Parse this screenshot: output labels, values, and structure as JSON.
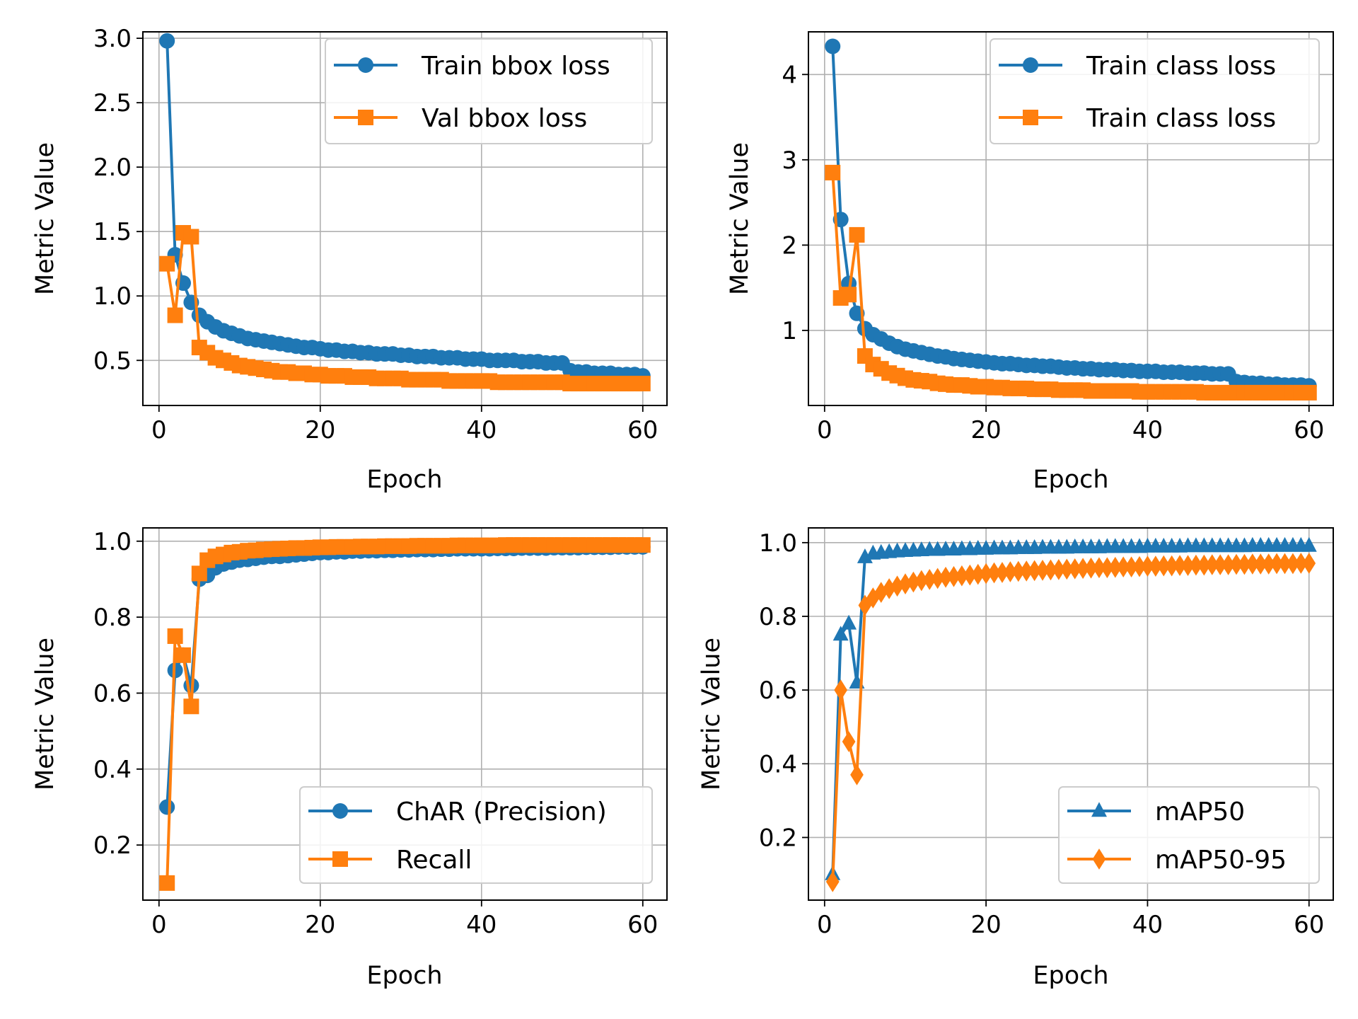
{
  "colors": {
    "blue": "#1f77b4",
    "orange": "#ff7f0e",
    "grid": "#b0b0b0"
  },
  "chart_data": [
    {
      "type": "line",
      "xlabel": "Epoch",
      "ylabel": "Metric Value",
      "xlim": [
        -2,
        63
      ],
      "ylim": [
        0.15,
        3.05
      ],
      "xticks": [
        0,
        20,
        40,
        60
      ],
      "yticks": [
        0.5,
        1.0,
        1.5,
        2.0,
        2.5,
        3.0
      ],
      "ytick_labels": [
        "0.5",
        "1.0",
        "1.5",
        "2.0",
        "2.5",
        "3.0"
      ],
      "legend_loc": "upper right",
      "grid": true,
      "x": [
        1,
        2,
        3,
        4,
        5,
        6,
        7,
        8,
        9,
        10,
        11,
        12,
        13,
        14,
        15,
        16,
        17,
        18,
        19,
        20,
        21,
        22,
        23,
        24,
        25,
        26,
        27,
        28,
        29,
        30,
        31,
        32,
        33,
        34,
        35,
        36,
        37,
        38,
        39,
        40,
        41,
        42,
        43,
        44,
        45,
        46,
        47,
        48,
        49,
        50,
        51,
        52,
        53,
        54,
        55,
        56,
        57,
        58,
        59,
        60
      ],
      "series": [
        {
          "name": "Train bbox loss",
          "color": "#1f77b4",
          "marker": "circle",
          "values": [
            2.98,
            1.32,
            1.1,
            0.95,
            0.85,
            0.8,
            0.76,
            0.73,
            0.71,
            0.69,
            0.67,
            0.66,
            0.65,
            0.64,
            0.63,
            0.62,
            0.61,
            0.6,
            0.6,
            0.59,
            0.58,
            0.58,
            0.57,
            0.57,
            0.56,
            0.56,
            0.55,
            0.55,
            0.55,
            0.54,
            0.54,
            0.53,
            0.53,
            0.53,
            0.52,
            0.52,
            0.52,
            0.51,
            0.51,
            0.51,
            0.5,
            0.5,
            0.5,
            0.5,
            0.49,
            0.49,
            0.49,
            0.48,
            0.48,
            0.48,
            0.42,
            0.41,
            0.41,
            0.4,
            0.4,
            0.4,
            0.39,
            0.39,
            0.39,
            0.38
          ]
        },
        {
          "name": "Val bbox loss",
          "color": "#ff7f0e",
          "marker": "square",
          "values": [
            1.25,
            0.85,
            1.49,
            1.46,
            0.6,
            0.56,
            0.52,
            0.5,
            0.48,
            0.46,
            0.45,
            0.44,
            0.43,
            0.42,
            0.41,
            0.41,
            0.4,
            0.4,
            0.39,
            0.39,
            0.38,
            0.38,
            0.38,
            0.37,
            0.37,
            0.37,
            0.36,
            0.36,
            0.36,
            0.36,
            0.35,
            0.35,
            0.35,
            0.35,
            0.35,
            0.34,
            0.34,
            0.34,
            0.34,
            0.34,
            0.34,
            0.33,
            0.33,
            0.33,
            0.33,
            0.33,
            0.33,
            0.33,
            0.33,
            0.33,
            0.32,
            0.32,
            0.32,
            0.32,
            0.32,
            0.32,
            0.32,
            0.32,
            0.32,
            0.32
          ]
        }
      ]
    },
    {
      "type": "line",
      "xlabel": "Epoch",
      "ylabel": "Metric Value",
      "xlim": [
        -2,
        63
      ],
      "ylim": [
        0.12,
        4.5
      ],
      "xticks": [
        0,
        20,
        40,
        60
      ],
      "yticks": [
        1,
        2,
        3,
        4
      ],
      "ytick_labels": [
        "1",
        "2",
        "3",
        "4"
      ],
      "legend_loc": "upper right",
      "grid": true,
      "x": [
        1,
        2,
        3,
        4,
        5,
        6,
        7,
        8,
        9,
        10,
        11,
        12,
        13,
        14,
        15,
        16,
        17,
        18,
        19,
        20,
        21,
        22,
        23,
        24,
        25,
        26,
        27,
        28,
        29,
        30,
        31,
        32,
        33,
        34,
        35,
        36,
        37,
        38,
        39,
        40,
        41,
        42,
        43,
        44,
        45,
        46,
        47,
        48,
        49,
        50,
        51,
        52,
        53,
        54,
        55,
        56,
        57,
        58,
        59,
        60
      ],
      "series": [
        {
          "name": "Train class loss",
          "color": "#1f77b4",
          "marker": "circle",
          "values": [
            4.33,
            2.3,
            1.55,
            1.2,
            1.02,
            0.95,
            0.9,
            0.85,
            0.81,
            0.78,
            0.76,
            0.74,
            0.72,
            0.7,
            0.69,
            0.67,
            0.66,
            0.65,
            0.64,
            0.63,
            0.62,
            0.61,
            0.61,
            0.6,
            0.59,
            0.59,
            0.58,
            0.58,
            0.57,
            0.56,
            0.56,
            0.55,
            0.55,
            0.54,
            0.54,
            0.54,
            0.53,
            0.53,
            0.52,
            0.52,
            0.52,
            0.51,
            0.51,
            0.51,
            0.5,
            0.5,
            0.5,
            0.49,
            0.49,
            0.49,
            0.4,
            0.39,
            0.38,
            0.38,
            0.37,
            0.37,
            0.36,
            0.36,
            0.36,
            0.35
          ]
        },
        {
          "name": "Train class loss",
          "color": "#ff7f0e",
          "marker": "square",
          "values": [
            2.85,
            1.38,
            1.42,
            2.12,
            0.7,
            0.6,
            0.55,
            0.5,
            0.47,
            0.44,
            0.42,
            0.41,
            0.4,
            0.38,
            0.37,
            0.36,
            0.36,
            0.35,
            0.34,
            0.34,
            0.33,
            0.33,
            0.32,
            0.32,
            0.32,
            0.31,
            0.31,
            0.31,
            0.3,
            0.3,
            0.3,
            0.3,
            0.29,
            0.29,
            0.29,
            0.29,
            0.29,
            0.29,
            0.28,
            0.28,
            0.28,
            0.28,
            0.28,
            0.28,
            0.28,
            0.28,
            0.27,
            0.27,
            0.27,
            0.27,
            0.27,
            0.27,
            0.27,
            0.27,
            0.27,
            0.27,
            0.27,
            0.27,
            0.27,
            0.27
          ]
        }
      ]
    },
    {
      "type": "line",
      "xlabel": "Epoch",
      "ylabel": "Metric Value",
      "xlim": [
        -2,
        63
      ],
      "ylim": [
        0.055,
        1.035
      ],
      "xticks": [
        0,
        20,
        40,
        60
      ],
      "yticks": [
        0.2,
        0.4,
        0.6,
        0.8,
        1.0
      ],
      "ytick_labels": [
        "0.2",
        "0.4",
        "0.6",
        "0.8",
        "1.0"
      ],
      "legend_loc": "lower right",
      "grid": true,
      "x": [
        1,
        2,
        3,
        4,
        5,
        6,
        7,
        8,
        9,
        10,
        11,
        12,
        13,
        14,
        15,
        16,
        17,
        18,
        19,
        20,
        21,
        22,
        23,
        24,
        25,
        26,
        27,
        28,
        29,
        30,
        31,
        32,
        33,
        34,
        35,
        36,
        37,
        38,
        39,
        40,
        41,
        42,
        43,
        44,
        45,
        46,
        47,
        48,
        49,
        50,
        51,
        52,
        53,
        54,
        55,
        56,
        57,
        58,
        59,
        60
      ],
      "series": [
        {
          "name": "ChAR (Precision)",
          "color": "#1f77b4",
          "marker": "circle",
          "values": [
            0.3,
            0.66,
            0.7,
            0.62,
            0.9,
            0.91,
            0.93,
            0.94,
            0.945,
            0.95,
            0.952,
            0.955,
            0.958,
            0.96,
            0.96,
            0.962,
            0.964,
            0.966,
            0.968,
            0.97,
            0.97,
            0.972,
            0.972,
            0.974,
            0.974,
            0.975,
            0.975,
            0.976,
            0.976,
            0.977,
            0.977,
            0.978,
            0.978,
            0.978,
            0.979,
            0.979,
            0.98,
            0.98,
            0.98,
            0.98,
            0.98,
            0.981,
            0.981,
            0.981,
            0.982,
            0.982,
            0.982,
            0.982,
            0.983,
            0.983,
            0.983,
            0.983,
            0.984,
            0.984,
            0.984,
            0.984,
            0.985,
            0.985,
            0.985,
            0.985
          ]
        },
        {
          "name": "Recall",
          "color": "#ff7f0e",
          "marker": "square",
          "values": [
            0.1,
            0.75,
            0.7,
            0.565,
            0.915,
            0.95,
            0.96,
            0.965,
            0.97,
            0.972,
            0.975,
            0.976,
            0.978,
            0.979,
            0.98,
            0.981,
            0.982,
            0.982,
            0.983,
            0.984,
            0.984,
            0.985,
            0.985,
            0.985,
            0.986,
            0.986,
            0.986,
            0.987,
            0.987,
            0.987,
            0.987,
            0.988,
            0.988,
            0.988,
            0.988,
            0.988,
            0.989,
            0.989,
            0.989,
            0.989,
            0.989,
            0.989,
            0.99,
            0.99,
            0.99,
            0.99,
            0.99,
            0.99,
            0.99,
            0.99,
            0.99,
            0.99,
            0.99,
            0.99,
            0.99,
            0.99,
            0.99,
            0.99,
            0.99,
            0.99
          ]
        }
      ]
    },
    {
      "type": "line",
      "xlabel": "Epoch",
      "ylabel": "Metric Value",
      "xlim": [
        -2,
        63
      ],
      "ylim": [
        0.03,
        1.04
      ],
      "xticks": [
        0,
        20,
        40,
        60
      ],
      "yticks": [
        0.2,
        0.4,
        0.6,
        0.8,
        1.0
      ],
      "ytick_labels": [
        "0.2",
        "0.4",
        "0.6",
        "0.8",
        "1.0"
      ],
      "legend_loc": "lower right",
      "grid": true,
      "x": [
        1,
        2,
        3,
        4,
        5,
        6,
        7,
        8,
        9,
        10,
        11,
        12,
        13,
        14,
        15,
        16,
        17,
        18,
        19,
        20,
        21,
        22,
        23,
        24,
        25,
        26,
        27,
        28,
        29,
        30,
        31,
        32,
        33,
        34,
        35,
        36,
        37,
        38,
        39,
        40,
        41,
        42,
        43,
        44,
        45,
        46,
        47,
        48,
        49,
        50,
        51,
        52,
        53,
        54,
        55,
        56,
        57,
        58,
        59,
        60
      ],
      "series": [
        {
          "name": "mAP50",
          "color": "#1f77b4",
          "marker": "triangle",
          "values": [
            0.1,
            0.75,
            0.78,
            0.62,
            0.96,
            0.97,
            0.972,
            0.974,
            0.976,
            0.977,
            0.978,
            0.979,
            0.98,
            0.98,
            0.981,
            0.981,
            0.982,
            0.982,
            0.983,
            0.983,
            0.984,
            0.984,
            0.984,
            0.985,
            0.985,
            0.985,
            0.986,
            0.986,
            0.986,
            0.986,
            0.987,
            0.987,
            0.987,
            0.987,
            0.988,
            0.988,
            0.988,
            0.988,
            0.988,
            0.989,
            0.989,
            0.989,
            0.989,
            0.989,
            0.99,
            0.99,
            0.99,
            0.99,
            0.99,
            0.99,
            0.99,
            0.99,
            0.991,
            0.991,
            0.991,
            0.991,
            0.991,
            0.991,
            0.991,
            0.991
          ]
        },
        {
          "name": "mAP50-95",
          "color": "#ff7f0e",
          "marker": "diamond",
          "values": [
            0.08,
            0.6,
            0.46,
            0.37,
            0.83,
            0.85,
            0.865,
            0.875,
            0.882,
            0.888,
            0.893,
            0.897,
            0.9,
            0.903,
            0.906,
            0.908,
            0.91,
            0.912,
            0.914,
            0.916,
            0.918,
            0.919,
            0.921,
            0.922,
            0.923,
            0.924,
            0.925,
            0.926,
            0.927,
            0.928,
            0.929,
            0.93,
            0.931,
            0.932,
            0.932,
            0.933,
            0.934,
            0.934,
            0.935,
            0.936,
            0.936,
            0.937,
            0.937,
            0.938,
            0.938,
            0.939,
            0.939,
            0.94,
            0.94,
            0.94,
            0.941,
            0.941,
            0.942,
            0.942,
            0.942,
            0.943,
            0.943,
            0.943,
            0.944,
            0.944
          ]
        }
      ]
    }
  ]
}
